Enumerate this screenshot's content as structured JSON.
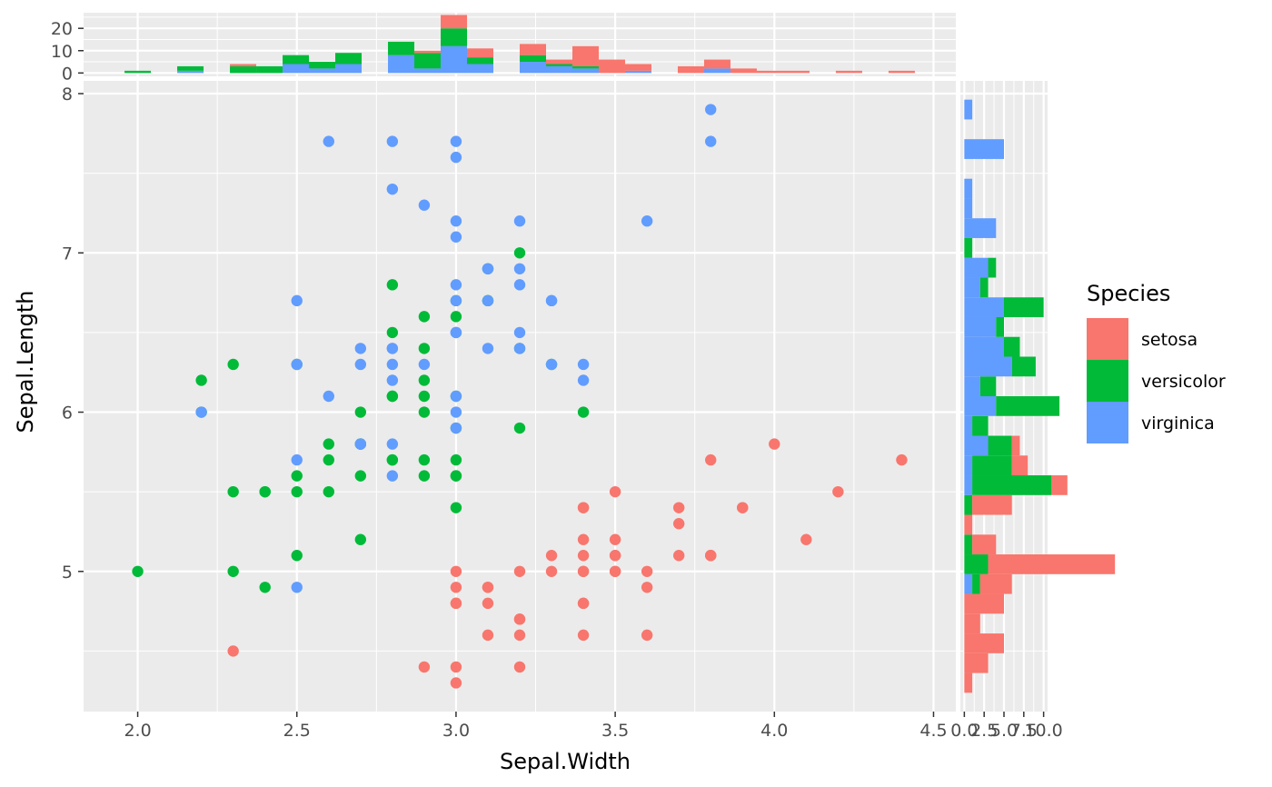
{
  "chart_data": {
    "type": "scatter",
    "xlabel": "Sepal.Width",
    "ylabel": "Sepal.Length",
    "xlim": [
      1.83,
      4.57
    ],
    "ylim": [
      4.12,
      8.08
    ],
    "x_ticks": [
      "2.0",
      "2.5",
      "3.0",
      "3.5",
      "4.0",
      "4.5"
    ],
    "y_ticks": [
      "5",
      "6",
      "7",
      "8"
    ],
    "grid": true,
    "legend": {
      "title": "Species",
      "placement": "right"
    },
    "colors": {
      "setosa": "#F8766D",
      "versicolor": "#00BA38",
      "virginica": "#619CFF"
    },
    "series": [
      {
        "name": "setosa",
        "color": "#F8766D",
        "points": [
          [
            3.5,
            5.1
          ],
          [
            3.0,
            4.9
          ],
          [
            3.2,
            4.7
          ],
          [
            3.1,
            4.6
          ],
          [
            3.6,
            5.0
          ],
          [
            3.9,
            5.4
          ],
          [
            3.4,
            4.6
          ],
          [
            3.4,
            5.0
          ],
          [
            2.9,
            4.4
          ],
          [
            3.1,
            4.9
          ],
          [
            3.7,
            5.4
          ],
          [
            3.4,
            4.8
          ],
          [
            3.0,
            4.8
          ],
          [
            3.0,
            4.3
          ],
          [
            4.0,
            5.8
          ],
          [
            4.4,
            5.7
          ],
          [
            3.9,
            5.4
          ],
          [
            3.5,
            5.1
          ],
          [
            3.8,
            5.7
          ],
          [
            3.8,
            5.1
          ],
          [
            3.4,
            5.4
          ],
          [
            3.7,
            5.1
          ],
          [
            3.6,
            4.6
          ],
          [
            3.3,
            5.1
          ],
          [
            3.4,
            4.8
          ],
          [
            3.0,
            5.0
          ],
          [
            3.4,
            5.0
          ],
          [
            3.5,
            5.2
          ],
          [
            3.4,
            5.2
          ],
          [
            3.2,
            4.7
          ],
          [
            3.1,
            4.8
          ],
          [
            3.4,
            5.4
          ],
          [
            4.1,
            5.2
          ],
          [
            4.2,
            5.5
          ],
          [
            3.1,
            4.9
          ],
          [
            3.2,
            5.0
          ],
          [
            3.5,
            5.5
          ],
          [
            3.6,
            4.9
          ],
          [
            3.0,
            4.4
          ],
          [
            3.4,
            5.1
          ],
          [
            3.5,
            5.0
          ],
          [
            2.3,
            4.5
          ],
          [
            3.2,
            4.4
          ],
          [
            3.5,
            5.0
          ],
          [
            3.8,
            5.1
          ],
          [
            3.0,
            4.8
          ],
          [
            3.8,
            5.1
          ],
          [
            3.2,
            4.6
          ],
          [
            3.7,
            5.3
          ],
          [
            3.3,
            5.0
          ]
        ]
      },
      {
        "name": "versicolor",
        "color": "#00BA38",
        "points": [
          [
            3.2,
            7.0
          ],
          [
            3.2,
            6.4
          ],
          [
            3.1,
            6.9
          ],
          [
            2.3,
            5.5
          ],
          [
            2.8,
            6.5
          ],
          [
            2.8,
            5.7
          ],
          [
            3.3,
            6.3
          ],
          [
            2.4,
            4.9
          ],
          [
            2.9,
            6.6
          ],
          [
            2.7,
            5.2
          ],
          [
            2.0,
            5.0
          ],
          [
            3.0,
            5.9
          ],
          [
            2.2,
            6.0
          ],
          [
            2.9,
            6.1
          ],
          [
            2.9,
            5.6
          ],
          [
            3.1,
            6.7
          ],
          [
            3.0,
            5.6
          ],
          [
            2.7,
            5.8
          ],
          [
            2.2,
            6.2
          ],
          [
            2.5,
            5.6
          ],
          [
            3.2,
            5.9
          ],
          [
            2.8,
            6.1
          ],
          [
            2.5,
            6.3
          ],
          [
            2.8,
            6.1
          ],
          [
            2.9,
            6.4
          ],
          [
            3.0,
            6.6
          ],
          [
            2.8,
            6.8
          ],
          [
            3.0,
            6.7
          ],
          [
            2.9,
            6.0
          ],
          [
            2.6,
            5.7
          ],
          [
            2.4,
            5.5
          ],
          [
            2.4,
            5.5
          ],
          [
            2.7,
            5.8
          ],
          [
            2.7,
            6.0
          ],
          [
            3.0,
            5.4
          ],
          [
            3.4,
            6.0
          ],
          [
            3.1,
            6.7
          ],
          [
            2.3,
            6.3
          ],
          [
            3.0,
            5.6
          ],
          [
            2.5,
            5.5
          ],
          [
            2.6,
            5.5
          ],
          [
            3.0,
            6.1
          ],
          [
            2.6,
            5.8
          ],
          [
            2.3,
            5.0
          ],
          [
            2.7,
            5.6
          ],
          [
            3.0,
            5.7
          ],
          [
            2.9,
            5.7
          ],
          [
            2.9,
            6.2
          ],
          [
            2.5,
            5.1
          ],
          [
            2.8,
            5.7
          ]
        ]
      },
      {
        "name": "virginica",
        "color": "#619CFF",
        "points": [
          [
            3.3,
            6.3
          ],
          [
            2.7,
            5.8
          ],
          [
            3.0,
            7.1
          ],
          [
            2.9,
            6.3
          ],
          [
            3.0,
            6.5
          ],
          [
            3.0,
            7.6
          ],
          [
            2.5,
            4.9
          ],
          [
            2.9,
            7.3
          ],
          [
            2.5,
            6.7
          ],
          [
            3.6,
            7.2
          ],
          [
            3.2,
            6.5
          ],
          [
            2.7,
            6.4
          ],
          [
            3.0,
            6.8
          ],
          [
            2.5,
            5.7
          ],
          [
            2.8,
            5.8
          ],
          [
            3.2,
            6.4
          ],
          [
            3.0,
            6.5
          ],
          [
            3.8,
            7.7
          ],
          [
            2.6,
            7.7
          ],
          [
            2.2,
            6.0
          ],
          [
            3.2,
            6.9
          ],
          [
            2.8,
            5.6
          ],
          [
            2.8,
            7.7
          ],
          [
            2.7,
            6.3
          ],
          [
            3.3,
            6.7
          ],
          [
            3.2,
            7.2
          ],
          [
            2.8,
            6.2
          ],
          [
            3.0,
            6.1
          ],
          [
            2.8,
            6.4
          ],
          [
            3.0,
            7.2
          ],
          [
            2.8,
            7.4
          ],
          [
            3.8,
            7.9
          ],
          [
            2.8,
            6.4
          ],
          [
            2.8,
            6.3
          ],
          [
            2.6,
            6.1
          ],
          [
            3.0,
            7.7
          ],
          [
            3.4,
            6.3
          ],
          [
            3.1,
            6.4
          ],
          [
            3.0,
            6.0
          ],
          [
            3.1,
            6.9
          ],
          [
            3.1,
            6.7
          ],
          [
            3.1,
            6.9
          ],
          [
            2.7,
            5.8
          ],
          [
            3.2,
            6.8
          ],
          [
            3.3,
            6.7
          ],
          [
            3.0,
            6.7
          ],
          [
            2.5,
            6.3
          ],
          [
            3.0,
            6.5
          ],
          [
            3.4,
            6.2
          ],
          [
            3.0,
            5.9
          ]
        ]
      }
    ],
    "top_histogram": {
      "y_ticks": [
        "0",
        "10",
        "20"
      ],
      "ylim": [
        -1.5,
        27
      ]
    },
    "right_histogram": {
      "x_ticks": [
        "0.0",
        "2.5",
        "5.0",
        "7.5",
        "10.0"
      ],
      "xlim": [
        -0.5,
        10.5
      ]
    }
  }
}
